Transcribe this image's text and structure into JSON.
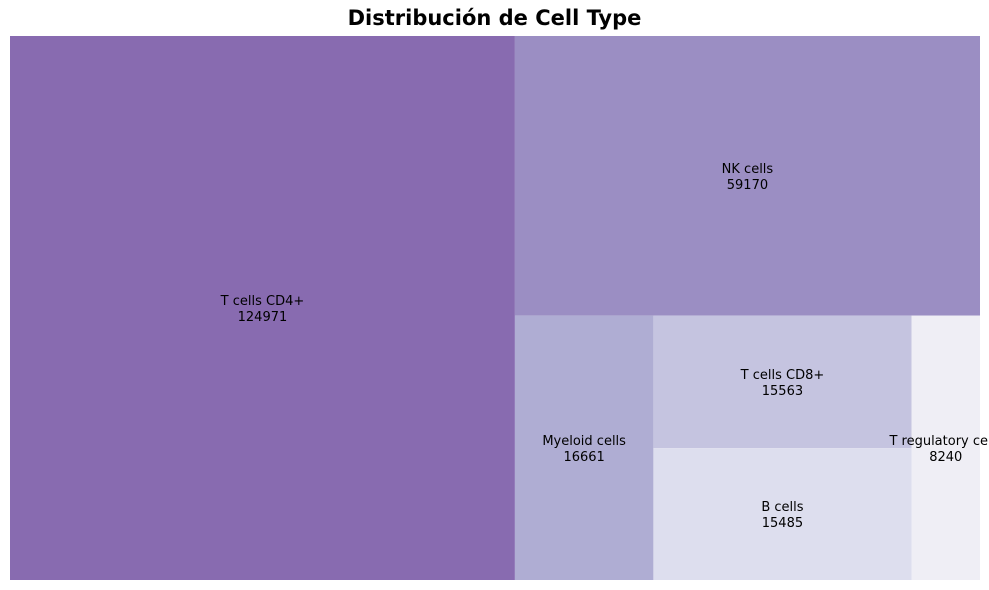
{
  "chart_data": {
    "type": "treemap",
    "title": "Distribución de Cell Type",
    "cells": [
      {
        "label": "T cells CD4+",
        "value": 124971,
        "color": "#886bb0"
      },
      {
        "label": "NK cells",
        "value": 59170,
        "color": "#9b8ec3"
      },
      {
        "label": "Myeloid cells",
        "value": 16661,
        "color": "#afadd3"
      },
      {
        "label": "T cells CD8+",
        "value": 15563,
        "color": "#c5c4e0"
      },
      {
        "label": "B cells",
        "value": 15485,
        "color": "#dddeee"
      },
      {
        "label": "T regulatory cells",
        "value": 8240,
        "color": "#efeef5"
      }
    ]
  }
}
